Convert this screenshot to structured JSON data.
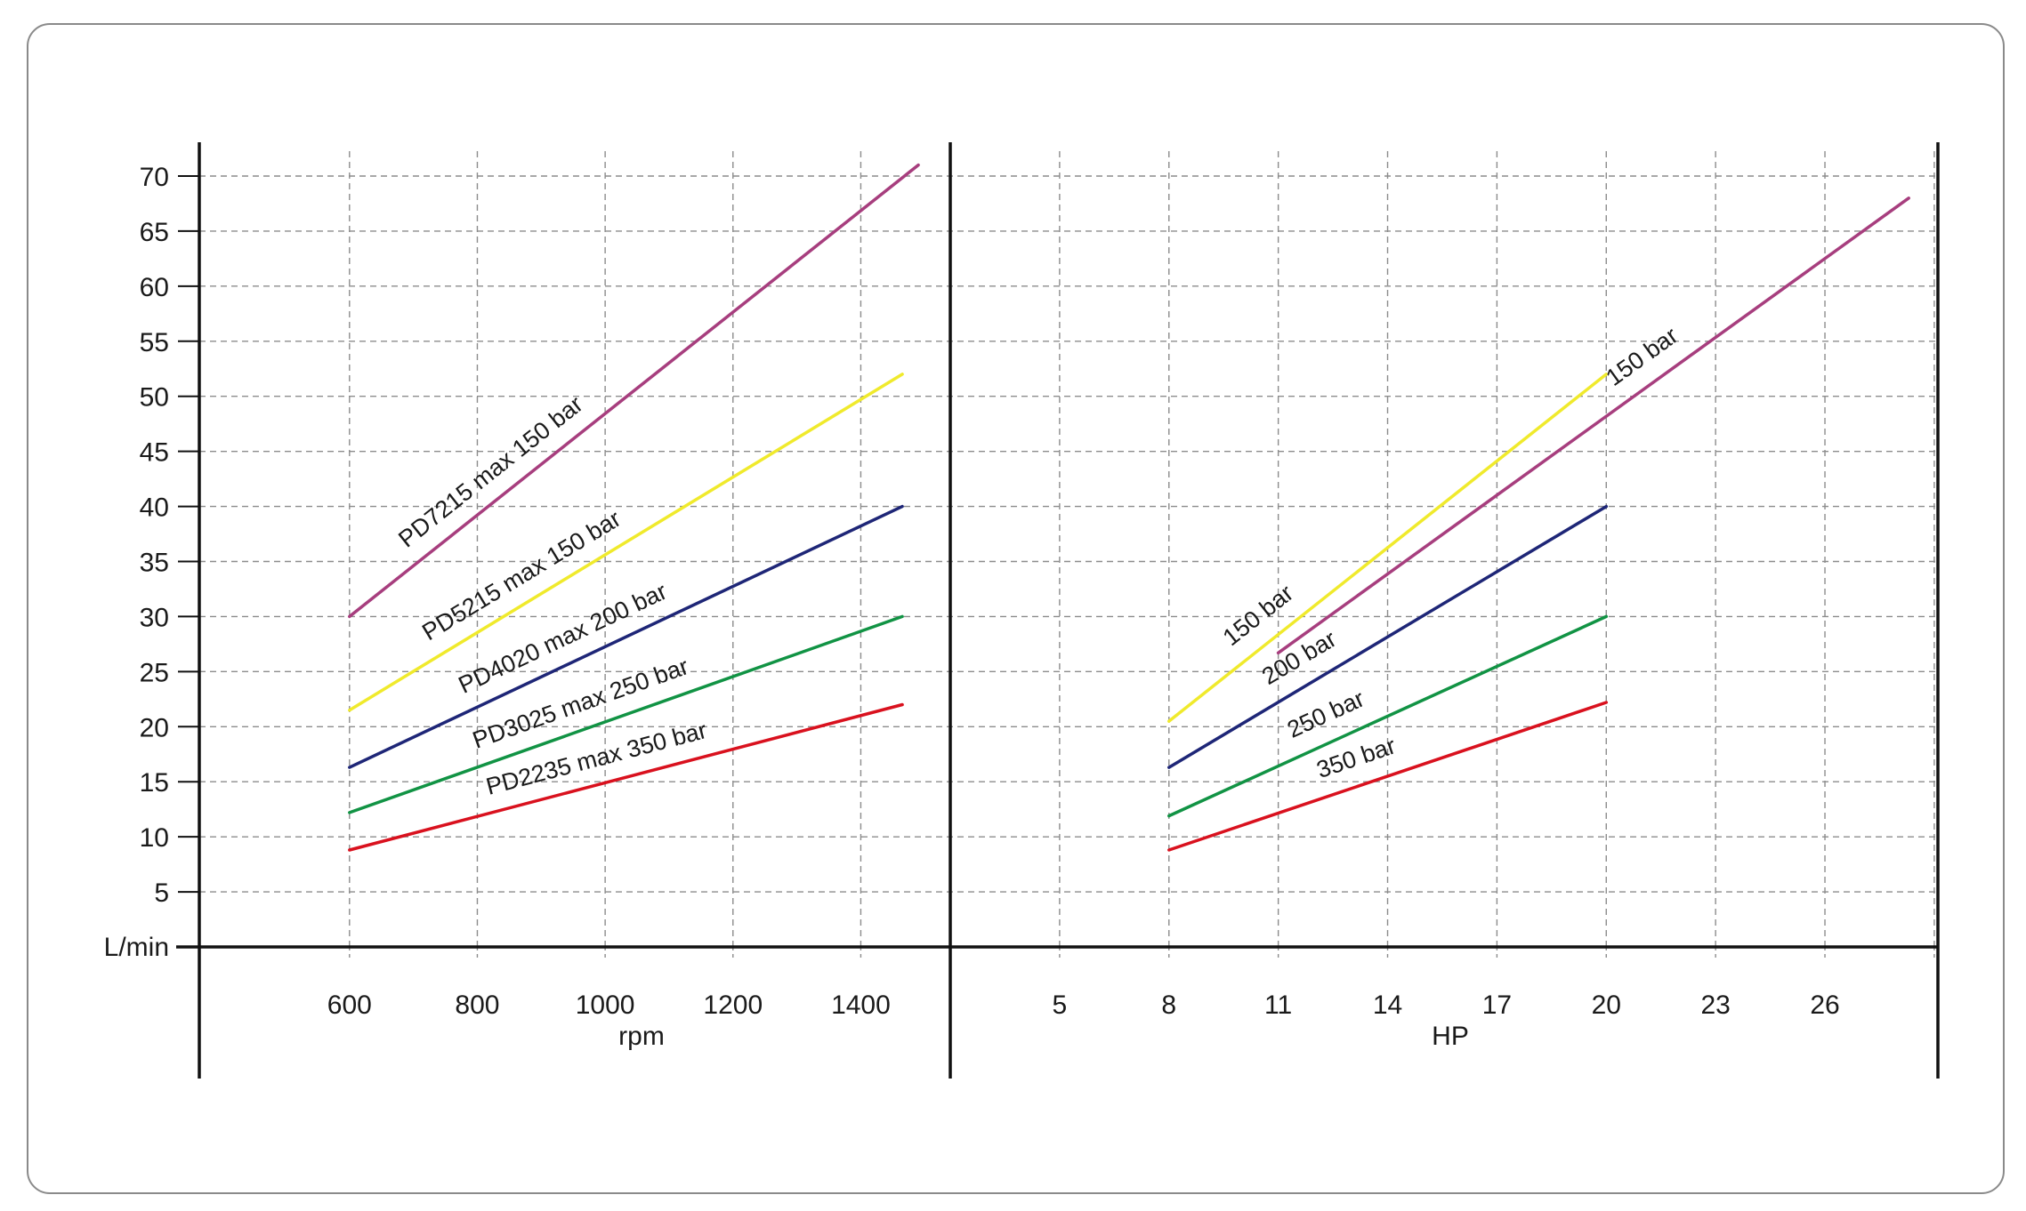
{
  "chart_data": {
    "type": "line",
    "grid": true,
    "y_axis": {
      "label": "L/min",
      "ticks": [
        5,
        10,
        15,
        20,
        25,
        30,
        35,
        40,
        45,
        50,
        55,
        60,
        65,
        70
      ],
      "range": [
        0,
        72
      ]
    },
    "panels": [
      {
        "id": "rpm",
        "xlabel": "rpm",
        "x_ticks": [
          600,
          800,
          1000,
          1200,
          1400
        ],
        "grid_x": [
          600,
          800,
          1000,
          1200,
          1400
        ],
        "x_range": [
          365,
          1540
        ],
        "series": [
          {
            "name": "PD7215 max 150 bar",
            "color": "#A73E7E",
            "points": [
              [
                600,
                30
              ],
              [
                1490,
                71
              ]
            ]
          },
          {
            "name": "PD5215 max 150 bar",
            "color": "#F0EA2C",
            "points": [
              [
                600,
                21.5
              ],
              [
                1465,
                52
              ]
            ]
          },
          {
            "name": "PD4020 max 200 bar",
            "color": "#1E2677",
            "points": [
              [
                600,
                16.3
              ],
              [
                1465,
                40
              ]
            ]
          },
          {
            "name": "PD3025 max 250 bar",
            "color": "#119344",
            "points": [
              [
                600,
                12.2
              ],
              [
                1465,
                30
              ]
            ]
          },
          {
            "name": "PD2235 max 350 bar",
            "color": "#D9111E",
            "points": [
              [
                600,
                8.8
              ],
              [
                1465,
                22
              ]
            ]
          }
        ]
      },
      {
        "id": "hp",
        "xlabel": "HP",
        "x_ticks": [
          5,
          8,
          11,
          14,
          17,
          20,
          23,
          26
        ],
        "grid_x": [
          5,
          8,
          11,
          14,
          17,
          20,
          23,
          26,
          29
        ],
        "x_range": [
          2.0,
          29.1
        ],
        "series": [
          {
            "name": "150 bar",
            "color": "#F0EA2C",
            "points": [
              [
                8,
                20.5
              ],
              [
                20,
                52
              ]
            ]
          },
          {
            "name": "150 bar",
            "color": "#A73E7E",
            "points": [
              [
                11,
                26.7
              ],
              [
                28.3,
                68
              ]
            ]
          },
          {
            "name": "200 bar",
            "color": "#1E2677",
            "points": [
              [
                8,
                16.3
              ],
              [
                20,
                40
              ]
            ]
          },
          {
            "name": "250 bar",
            "color": "#119344",
            "points": [
              [
                8,
                11.9
              ],
              [
                20,
                30
              ]
            ]
          },
          {
            "name": "350 bar",
            "color": "#D9111E",
            "points": [
              [
                8,
                8.8
              ],
              [
                20,
                22.2
              ]
            ]
          }
        ]
      }
    ]
  }
}
